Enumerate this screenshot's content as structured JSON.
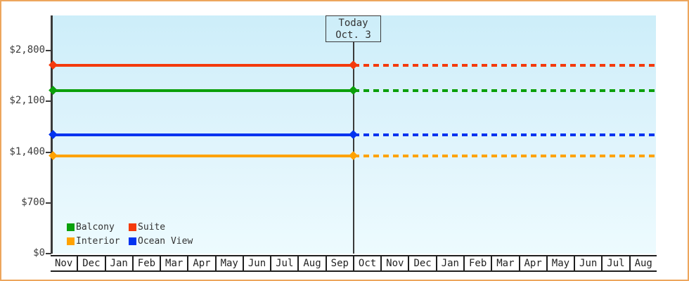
{
  "page": {
    "border_color": "#eda65d",
    "background": "#ffffff"
  },
  "chart_data": {
    "type": "line",
    "title": "",
    "xlabel": "",
    "ylabel": "",
    "grid": false,
    "ylim": [
      0,
      2800
    ],
    "plot": {
      "bg_top": "#cdeef9",
      "bg_bottom": "#edfbfe",
      "axis_color": "#3a3a3a"
    },
    "x_categories": [
      "Nov",
      "Dec",
      "Jan",
      "Feb",
      "Mar",
      "Apr",
      "May",
      "Jun",
      "Jul",
      "Aug",
      "Sep",
      "Oct",
      "Nov",
      "Dec",
      "Jan",
      "Feb",
      "Mar",
      "Apr",
      "May",
      "Jun",
      "Jul",
      "Aug"
    ],
    "y_ticks": [
      {
        "label": "$2,800",
        "value": 2800
      },
      {
        "label": "$2,100",
        "value": 2100
      },
      {
        "label": "$1,400",
        "value": 1400
      },
      {
        "label": "$700",
        "value": 700
      },
      {
        "label": "$0",
        "value": 0
      }
    ],
    "today": {
      "line1": "Today",
      "line2": "Oct. 3",
      "x_boundary_index": 11
    },
    "series": [
      {
        "name": "Suite",
        "color": "#f43a0c",
        "value": 2600,
        "style_before_today": "solid",
        "style_after_today": "dashed"
      },
      {
        "name": "Balcony",
        "color": "#0aa00a",
        "value": 2250,
        "style_before_today": "solid",
        "style_after_today": "dashed"
      },
      {
        "name": "Ocean View",
        "color": "#0233f0",
        "value": 1640,
        "style_before_today": "solid",
        "style_after_today": "dashed"
      },
      {
        "name": "Interior",
        "color": "#ffa200",
        "value": 1350,
        "style_before_today": "solid",
        "style_after_today": "dashed"
      }
    ],
    "legend": {
      "position": "bottom-left",
      "items": [
        {
          "label": "Balcony",
          "color": "#0aa00a"
        },
        {
          "label": "Suite",
          "color": "#f43a0c"
        },
        {
          "label": "Interior",
          "color": "#ffa200"
        },
        {
          "label": "Ocean View",
          "color": "#0233f0"
        }
      ]
    }
  }
}
